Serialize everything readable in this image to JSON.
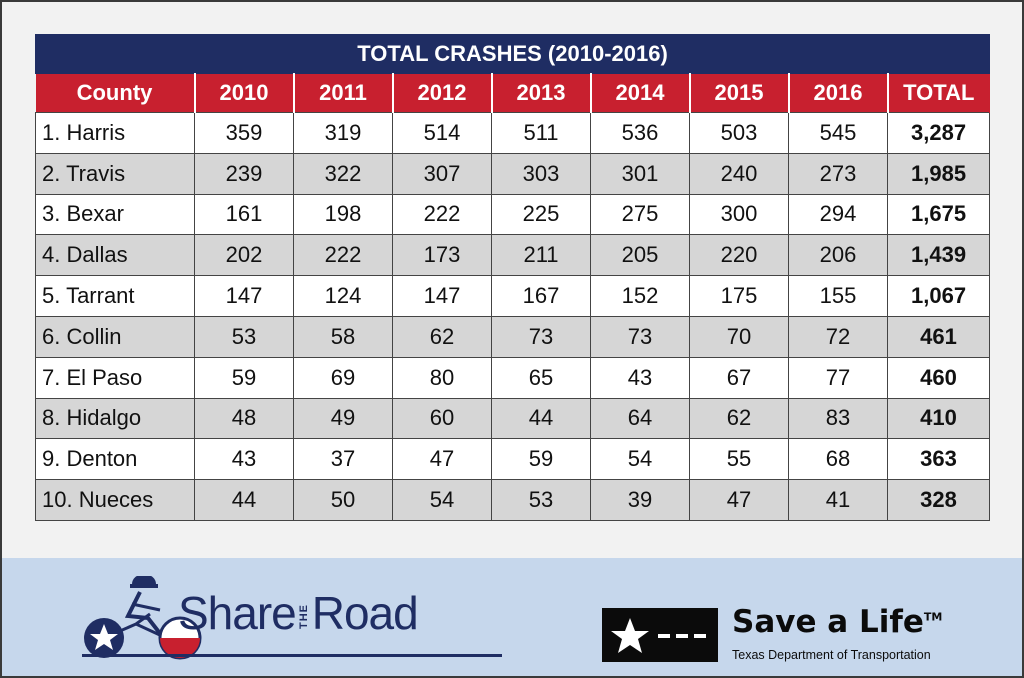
{
  "table": {
    "title": "TOTAL CRASHES (2010-2016)",
    "headers": [
      "County",
      "2010",
      "2011",
      "2012",
      "2013",
      "2014",
      "2015",
      "2016",
      "TOTAL"
    ],
    "rows": [
      [
        "1. Harris",
        "359",
        "319",
        "514",
        "511",
        "536",
        "503",
        "545",
        "3,287"
      ],
      [
        "2. Travis",
        "239",
        "322",
        "307",
        "303",
        "301",
        "240",
        "273",
        "1,985"
      ],
      [
        "3. Bexar",
        "161",
        "198",
        "222",
        "225",
        "275",
        "300",
        "294",
        "1,675"
      ],
      [
        "4. Dallas",
        "202",
        "222",
        "173",
        "211",
        "205",
        "220",
        "206",
        "1,439"
      ],
      [
        "5. Tarrant",
        "147",
        "124",
        "147",
        "167",
        "152",
        "175",
        "155",
        "1,067"
      ],
      [
        "6. Collin",
        "53",
        "58",
        "62",
        "73",
        "73",
        "70",
        "72",
        "461"
      ],
      [
        "7. El Paso",
        "59",
        "69",
        "80",
        "65",
        "43",
        "67",
        "77",
        "460"
      ],
      [
        "8. Hidalgo",
        "48",
        "49",
        "60",
        "44",
        "64",
        "62",
        "83",
        "410"
      ],
      [
        "9. Denton",
        "43",
        "37",
        "47",
        "59",
        "54",
        "55",
        "68",
        "363"
      ],
      [
        "10. Nueces",
        "44",
        "50",
        "54",
        "53",
        "39",
        "47",
        "41",
        "328"
      ]
    ]
  },
  "footer": {
    "share_logo": {
      "word_left": "Share",
      "word_middle": "THE",
      "word_right": "Road",
      "icon": "cyclist-icon"
    },
    "save_a_life": {
      "title": "Save a Life",
      "trademark": "TM",
      "subtitle": "Texas Department of Transportation",
      "icon": "texas-flag-icon"
    }
  },
  "colors": {
    "navy": "#1f2d63",
    "red": "#c8202f",
    "footer_bg": "#c6d7ec",
    "row_alt": "#d6d6d6"
  }
}
